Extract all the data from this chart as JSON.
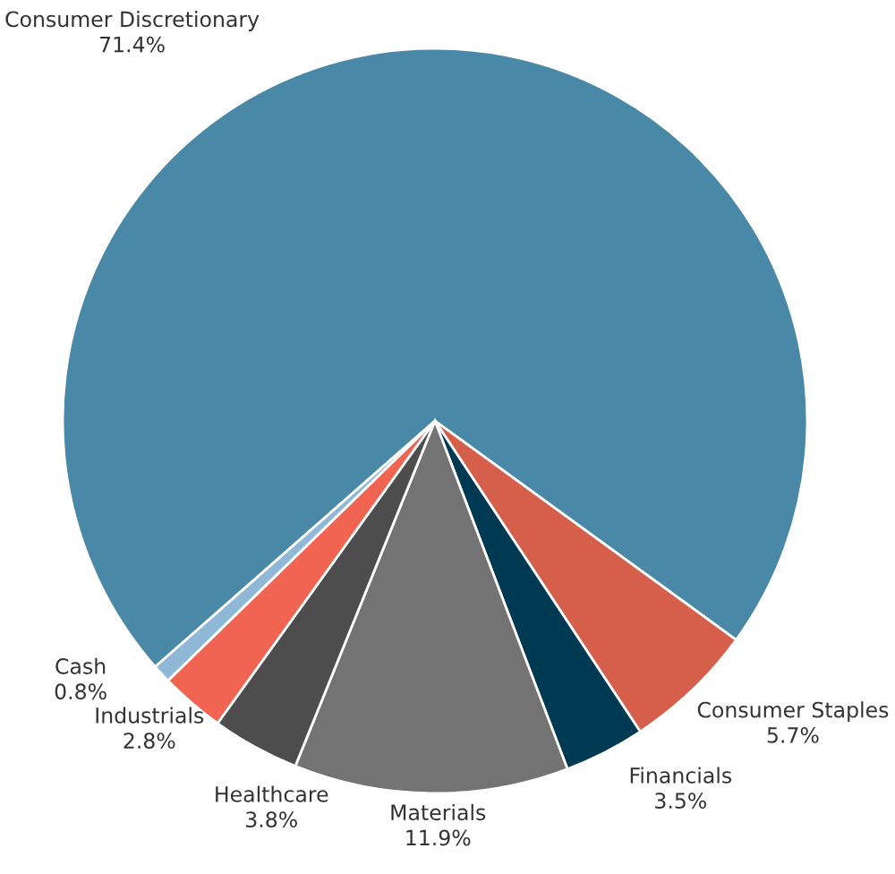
{
  "chart_data": {
    "type": "pie",
    "categories": [
      "Consumer Discretionary",
      "Consumer Staples",
      "Financials",
      "Materials",
      "Healthcare",
      "Industrials",
      "Cash"
    ],
    "values": [
      71.4,
      5.7,
      3.5,
      11.9,
      3.8,
      2.8,
      0.8
    ],
    "value_labels": [
      "71.4%",
      "5.7%",
      "3.5%",
      "11.9%",
      "3.8%",
      "2.8%",
      "0.8%"
    ],
    "colors": [
      "#4a88a8",
      "#d65f4c",
      "#003a52",
      "#737373",
      "#4d4d4d",
      "#f26452",
      "#8fb8d6"
    ]
  }
}
